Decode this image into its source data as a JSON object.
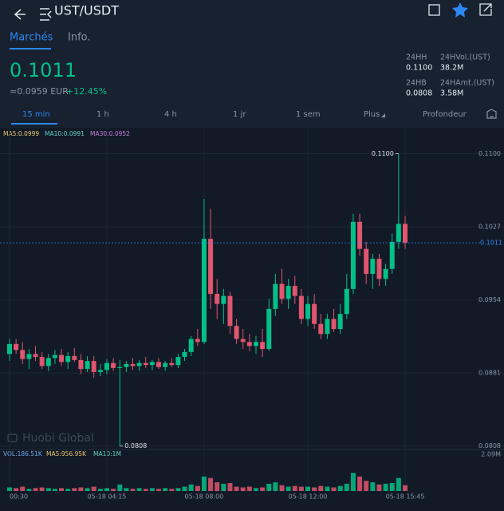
{
  "header": {
    "title": "UST/USDT"
  },
  "tabs": [
    "Marchés",
    "Info."
  ],
  "price": {
    "last": "0.1011",
    "fiat": "≈0.0959 EUR",
    "change": "+12.45%"
  },
  "stats": [
    {
      "label": "24HH",
      "value": "0.1100"
    },
    {
      "label": "24HVol.(UST)",
      "value": "38.2M"
    },
    {
      "label": "24HB",
      "value": "0.0808"
    },
    {
      "label": "24HAmt.(UST)",
      "value": "3.58M"
    }
  ],
  "periods": [
    "15 min",
    "1 h",
    "4 h",
    "1 jr",
    "1 sem",
    "Plus",
    "Profondeur"
  ],
  "indicators": [
    "MA5:0.0999",
    "MA10:0.0991",
    "MA30:0.0952"
  ],
  "volume_indicators": [
    "VOL:186.51K",
    "MA5:956.95K",
    "MA10:1M"
  ],
  "watermark": "Huobi Global",
  "chart_data": {
    "type": "candlestick",
    "categories": [
      "00:30",
      null,
      null,
      null,
      null,
      null,
      null,
      null,
      null,
      null,
      null,
      null,
      null,
      null,
      null,
      "05-18 04:15",
      null,
      null,
      null,
      null,
      null,
      null,
      null,
      null,
      null,
      null,
      null,
      null,
      null,
      null,
      "05-18 08:00",
      null,
      null,
      null,
      null,
      null,
      null,
      null,
      null,
      null,
      null,
      null,
      null,
      null,
      null,
      null,
      "05-18 12:00",
      null,
      null,
      null,
      null,
      null,
      null,
      null,
      null,
      null,
      null,
      null,
      null,
      null,
      null,
      "05-18 15:45"
    ],
    "open": [
      0.09,
      0.091,
      0.0904,
      0.0895,
      0.09,
      0.0897,
      0.0888,
      0.0896,
      0.0899,
      0.0892,
      0.0898,
      0.0894,
      0.0885,
      0.0893,
      0.0882,
      0.0884,
      0.0891,
      0.0886,
      0.0887,
      0.089,
      0.0888,
      0.0891,
      0.0889,
      0.0892,
      0.0887,
      0.0891,
      0.0889,
      0.0897,
      0.0902,
      0.0915,
      0.0912,
      0.1015,
      0.096,
      0.095,
      0.0958,
      0.0928,
      0.0915,
      0.0912,
      0.0908,
      0.0912,
      0.0905,
      0.0945,
      0.097,
      0.0955,
      0.0968,
      0.0958,
      0.0935,
      0.095,
      0.093,
      0.092,
      0.0935,
      0.0925,
      0.094,
      0.0965,
      0.1032,
      0.1005,
      0.098,
      0.0995,
      0.0975,
      0.0985,
      0.1012,
      0.103
    ],
    "high": [
      0.0915,
      0.0915,
      0.0912,
      0.0905,
      0.0908,
      0.0902,
      0.09,
      0.0904,
      0.0905,
      0.0902,
      0.0906,
      0.09,
      0.0898,
      0.0898,
      0.089,
      0.0895,
      0.0896,
      0.0894,
      0.0893,
      0.0896,
      0.0894,
      0.0897,
      0.0894,
      0.0896,
      0.0893,
      0.0896,
      0.09,
      0.0905,
      0.0918,
      0.0925,
      0.1055,
      0.1045,
      0.0975,
      0.0965,
      0.0962,
      0.0935,
      0.0925,
      0.092,
      0.0918,
      0.0925,
      0.0955,
      0.098,
      0.0985,
      0.0975,
      0.0978,
      0.0965,
      0.0958,
      0.096,
      0.094,
      0.094,
      0.0945,
      0.095,
      0.098,
      0.104,
      0.104,
      0.1012,
      0.1,
      0.1,
      0.099,
      0.102,
      0.11,
      0.1038
    ],
    "low": [
      0.0893,
      0.09,
      0.089,
      0.0885,
      0.0893,
      0.0885,
      0.0883,
      0.089,
      0.0888,
      0.0885,
      0.0892,
      0.088,
      0.0882,
      0.0876,
      0.0878,
      0.088,
      0.0883,
      0.0808,
      0.0882,
      0.0884,
      0.0883,
      0.0886,
      0.0884,
      0.0885,
      0.0883,
      0.0887,
      0.0886,
      0.0893,
      0.0898,
      0.0908,
      0.091,
      0.0945,
      0.0935,
      0.093,
      0.092,
      0.091,
      0.0905,
      0.0903,
      0.09,
      0.0897,
      0.0903,
      0.0938,
      0.095,
      0.0945,
      0.095,
      0.093,
      0.0928,
      0.0925,
      0.0915,
      0.0915,
      0.0922,
      0.092,
      0.0935,
      0.096,
      0.0998,
      0.097,
      0.0965,
      0.0968,
      0.0968,
      0.098,
      0.1005,
      0.1005
    ],
    "close": [
      0.091,
      0.0904,
      0.0895,
      0.09,
      0.0897,
      0.0888,
      0.0896,
      0.0899,
      0.0892,
      0.0898,
      0.0894,
      0.0885,
      0.0893,
      0.0882,
      0.0884,
      0.0891,
      0.0886,
      0.0887,
      0.089,
      0.0888,
      0.0891,
      0.0889,
      0.0892,
      0.0887,
      0.0891,
      0.0889,
      0.0897,
      0.0902,
      0.0915,
      0.0912,
      0.1015,
      0.096,
      0.095,
      0.0958,
      0.0928,
      0.0915,
      0.0912,
      0.0908,
      0.0912,
      0.0905,
      0.0945,
      0.097,
      0.0955,
      0.0968,
      0.0958,
      0.0935,
      0.095,
      0.093,
      0.092,
      0.0935,
      0.0925,
      0.094,
      0.0965,
      0.1032,
      0.1005,
      0.098,
      0.0995,
      0.0975,
      0.0985,
      0.1012,
      0.103,
      0.1011
    ],
    "volume": [
      0.25,
      0.2,
      0.3,
      0.15,
      0.2,
      0.25,
      0.2,
      0.15,
      0.2,
      0.15,
      0.2,
      0.25,
      0.2,
      0.3,
      0.15,
      0.2,
      0.15,
      0.45,
      0.2,
      0.15,
      0.2,
      0.15,
      0.2,
      0.15,
      0.2,
      0.15,
      0.2,
      0.3,
      0.45,
      0.35,
      1.0,
      0.9,
      0.6,
      0.5,
      0.55,
      0.3,
      0.25,
      0.3,
      0.2,
      0.25,
      0.5,
      0.6,
      0.4,
      0.3,
      0.35,
      0.3,
      0.3,
      0.25,
      0.35,
      0.3,
      0.25,
      0.35,
      0.5,
      1.25,
      1.0,
      0.7,
      0.6,
      0.45,
      0.5,
      0.55,
      0.9,
      0.4
    ],
    "volume_max": {
      "value": 2.09,
      "label": "2.09M"
    },
    "up_color": "#03c087",
    "down_color": "#e0566e",
    "ylim": [
      0.0803,
      0.111
    ],
    "yticks": [
      0.0808,
      0.0881,
      0.0954,
      0.1027,
      {
        "value": 0.11,
        "label": "0.1100"
      }
    ],
    "last_price": 0.1011,
    "annotations": [
      {
        "value": 0.11,
        "label": "0.1100"
      },
      {
        "value": 0.0808,
        "label": "0.0808"
      }
    ]
  }
}
